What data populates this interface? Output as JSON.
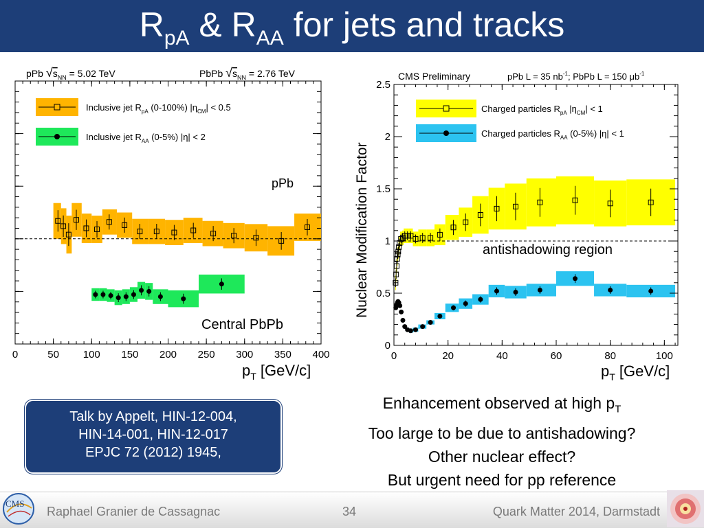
{
  "title": {
    "R": "R",
    "sub1": "pA",
    "amp": " & R",
    "sub2": "AA",
    "rest": " for jets and tracks"
  },
  "colors": {
    "title_bar": "#1d3e78",
    "jet_rpa_band": "#ffb400",
    "jet_raa_band": "#1ee85a",
    "trk_rpa_band": "#ffff00",
    "trk_raa_band": "#2cc3f0"
  },
  "chart_data": [
    {
      "type": "scatter",
      "xlabel": "p",
      "xlabel_sub": "T",
      "xlabel_unit": " [GeV/c]",
      "ylabel": "",
      "xlim": [
        0,
        400
      ],
      "ylim": [
        0,
        2.5
      ],
      "xticks": [
        0,
        50,
        100,
        150,
        200,
        250,
        300,
        350,
        400
      ],
      "reference_line": 1,
      "header_left": "pPb √s_NN = 5.02 TeV",
      "header_right": "PbPb √s_NN = 2.76 TeV",
      "annotations": [
        "pPb",
        "Central PbPb"
      ],
      "series": [
        {
          "name": "Inclusive jet R_pA (0-100%) |η_CM| < 0.5",
          "marker": "open-square",
          "points": [
            {
              "x": 56,
              "y": 1.17,
              "xlo": 50,
              "xhi": 60,
              "syst": 0.17
            },
            {
              "x": 63,
              "y": 1.12,
              "xlo": 60,
              "xhi": 67,
              "syst": 0.17
            },
            {
              "x": 70,
              "y": 1.04,
              "xlo": 67,
              "xhi": 74,
              "syst": 0.18
            },
            {
              "x": 80,
              "y": 1.18,
              "xlo": 74,
              "xhi": 87,
              "syst": 0.16
            },
            {
              "x": 93,
              "y": 1.1,
              "xlo": 87,
              "xhi": 100,
              "syst": 0.14
            },
            {
              "x": 107,
              "y": 1.09,
              "xlo": 100,
              "xhi": 114,
              "syst": 0.13
            },
            {
              "x": 123,
              "y": 1.16,
              "xlo": 114,
              "xhi": 133,
              "syst": 0.12
            },
            {
              "x": 143,
              "y": 1.13,
              "xlo": 133,
              "xhi": 153,
              "syst": 0.12
            },
            {
              "x": 163,
              "y": 1.07,
              "xlo": 153,
              "xhi": 174,
              "syst": 0.12
            },
            {
              "x": 185,
              "y": 1.07,
              "xlo": 174,
              "xhi": 196,
              "syst": 0.12
            },
            {
              "x": 208,
              "y": 1.06,
              "xlo": 196,
              "xhi": 220,
              "syst": 0.12
            },
            {
              "x": 233,
              "y": 1.08,
              "xlo": 220,
              "xhi": 245,
              "syst": 0.12
            },
            {
              "x": 259,
              "y": 1.05,
              "xlo": 245,
              "xhi": 272,
              "syst": 0.12
            },
            {
              "x": 286,
              "y": 1.03,
              "xlo": 272,
              "xhi": 300,
              "syst": 0.12
            },
            {
              "x": 315,
              "y": 1.01,
              "xlo": 300,
              "xhi": 330,
              "syst": 0.13
            },
            {
              "x": 348,
              "y": 0.98,
              "xlo": 330,
              "xhi": 365,
              "syst": 0.14
            },
            {
              "x": 382,
              "y": 1.11,
              "xlo": 365,
              "xhi": 400,
              "syst": 0.13
            }
          ]
        },
        {
          "name": "Inclusive jet R_AA (0-5%) |η| < 2",
          "marker": "filled-circle",
          "points": [
            {
              "x": 105,
              "y": 0.47,
              "xlo": 100,
              "xhi": 110,
              "syst": 0.06
            },
            {
              "x": 115,
              "y": 0.47,
              "xlo": 110,
              "xhi": 120,
              "syst": 0.06
            },
            {
              "x": 125,
              "y": 0.46,
              "xlo": 120,
              "xhi": 130,
              "syst": 0.06
            },
            {
              "x": 135,
              "y": 0.44,
              "xlo": 130,
              "xhi": 140,
              "syst": 0.07
            },
            {
              "x": 145,
              "y": 0.45,
              "xlo": 140,
              "xhi": 150,
              "syst": 0.07
            },
            {
              "x": 155,
              "y": 0.47,
              "xlo": 150,
              "xhi": 160,
              "syst": 0.07
            },
            {
              "x": 165,
              "y": 0.51,
              "xlo": 160,
              "xhi": 170,
              "syst": 0.08
            },
            {
              "x": 175,
              "y": 0.5,
              "xlo": 170,
              "xhi": 180,
              "syst": 0.08
            },
            {
              "x": 190,
              "y": 0.45,
              "xlo": 180,
              "xhi": 200,
              "syst": 0.07
            },
            {
              "x": 220,
              "y": 0.43,
              "xlo": 200,
              "xhi": 240,
              "syst": 0.08
            },
            {
              "x": 270,
              "y": 0.57,
              "xlo": 240,
              "xhi": 300,
              "syst": 0.09
            }
          ]
        }
      ]
    },
    {
      "type": "scatter",
      "xlabel": "p",
      "xlabel_sub": "T",
      "xlabel_unit": " [GeV/c]",
      "ylabel": "Nuclear Modification Factor",
      "xlim": [
        0,
        105
      ],
      "ylim": [
        0,
        2.5
      ],
      "xticks": [
        0,
        20,
        40,
        60,
        80,
        100
      ],
      "yticks": [
        0,
        0.5,
        1,
        1.5,
        2,
        2.5
      ],
      "reference_line": 1,
      "header_left": "CMS Preliminary",
      "header_right": "pPb L = 35 nb⁻¹; PbPb L = 150 μb⁻¹",
      "annotations": [
        "antishadowing region"
      ],
      "series": [
        {
          "name": "Charged particles R_pA |η_CM| < 1",
          "marker": "open-square",
          "points": [
            {
              "x": 0.6,
              "y": 0.6,
              "xlo": 0.5,
              "xhi": 0.7,
              "syst": 0.07
            },
            {
              "x": 0.8,
              "y": 0.68,
              "xlo": 0.7,
              "xhi": 0.9,
              "syst": 0.07
            },
            {
              "x": 1.0,
              "y": 0.76,
              "xlo": 0.9,
              "xhi": 1.1,
              "syst": 0.07
            },
            {
              "x": 1.2,
              "y": 0.83,
              "xlo": 1.1,
              "xhi": 1.3,
              "syst": 0.07
            },
            {
              "x": 1.4,
              "y": 0.87,
              "xlo": 1.3,
              "xhi": 1.5,
              "syst": 0.07
            },
            {
              "x": 1.6,
              "y": 0.9,
              "xlo": 1.5,
              "xhi": 1.7,
              "syst": 0.07
            },
            {
              "x": 1.8,
              "y": 0.94,
              "xlo": 1.7,
              "xhi": 1.9,
              "syst": 0.07
            },
            {
              "x": 2.1,
              "y": 0.98,
              "xlo": 1.9,
              "xhi": 2.3,
              "syst": 0.07
            },
            {
              "x": 2.6,
              "y": 1.02,
              "xlo": 2.3,
              "xhi": 3.0,
              "syst": 0.07
            },
            {
              "x": 3.3,
              "y": 1.03,
              "xlo": 3.0,
              "xhi": 3.6,
              "syst": 0.07
            },
            {
              "x": 4.0,
              "y": 1.05,
              "xlo": 3.6,
              "xhi": 4.5,
              "syst": 0.07
            },
            {
              "x": 5.0,
              "y": 1.05,
              "xlo": 4.5,
              "xhi": 5.5,
              "syst": 0.07
            },
            {
              "x": 6.2,
              "y": 1.05,
              "xlo": 5.5,
              "xhi": 7.0,
              "syst": 0.07
            },
            {
              "x": 8.0,
              "y": 1.02,
              "xlo": 7.0,
              "xhi": 9.0,
              "syst": 0.07
            },
            {
              "x": 10.6,
              "y": 1.03,
              "xlo": 9.0,
              "xhi": 12.0,
              "syst": 0.08
            },
            {
              "x": 13.5,
              "y": 1.03,
              "xlo": 12.0,
              "xhi": 15.0,
              "syst": 0.08
            },
            {
              "x": 17.0,
              "y": 1.06,
              "xlo": 15.0,
              "xhi": 19.0,
              "syst": 0.1
            },
            {
              "x": 22.0,
              "y": 1.13,
              "xlo": 19.0,
              "xhi": 24.0,
              "syst": 0.12
            },
            {
              "x": 26.5,
              "y": 1.18,
              "xlo": 24.0,
              "xhi": 29.0,
              "syst": 0.14
            },
            {
              "x": 32.0,
              "y": 1.25,
              "xlo": 29.0,
              "xhi": 35.0,
              "syst": 0.18
            },
            {
              "x": 38.0,
              "y": 1.31,
              "xlo": 35.0,
              "xhi": 41.0,
              "syst": 0.2
            },
            {
              "x": 45.0,
              "y": 1.33,
              "xlo": 41.0,
              "xhi": 49.0,
              "syst": 0.22
            },
            {
              "x": 54.0,
              "y": 1.37,
              "xlo": 49.0,
              "xhi": 60.0,
              "syst": 0.23
            },
            {
              "x": 67.0,
              "y": 1.39,
              "xlo": 60.0,
              "xhi": 74.0,
              "syst": 0.23
            },
            {
              "x": 80.0,
              "y": 1.36,
              "xlo": 74.0,
              "xhi": 86.0,
              "syst": 0.22
            },
            {
              "x": 95.0,
              "y": 1.37,
              "xlo": 86.0,
              "xhi": 104.0,
              "syst": 0.22
            }
          ]
        },
        {
          "name": "Charged particles R_AA (0-5%) |η| < 1",
          "marker": "filled-circle",
          "points": [
            {
              "x": 0.7,
              "y": 0.36,
              "xlo": 0.6,
              "xhi": 0.8,
              "syst": 0.02
            },
            {
              "x": 0.9,
              "y": 0.38,
              "xlo": 0.8,
              "xhi": 1.0,
              "syst": 0.02
            },
            {
              "x": 1.1,
              "y": 0.39,
              "xlo": 1.0,
              "xhi": 1.2,
              "syst": 0.02
            },
            {
              "x": 1.3,
              "y": 0.41,
              "xlo": 1.2,
              "xhi": 1.4,
              "syst": 0.02
            },
            {
              "x": 1.5,
              "y": 0.42,
              "xlo": 1.4,
              "xhi": 1.6,
              "syst": 0.02
            },
            {
              "x": 1.8,
              "y": 0.41,
              "xlo": 1.6,
              "xhi": 2.0,
              "syst": 0.02
            },
            {
              "x": 2.2,
              "y": 0.38,
              "xlo": 2.0,
              "xhi": 2.4,
              "syst": 0.02
            },
            {
              "x": 2.7,
              "y": 0.32,
              "xlo": 2.4,
              "xhi": 3.0,
              "syst": 0.02
            },
            {
              "x": 3.3,
              "y": 0.24,
              "xlo": 3.0,
              "xhi": 3.6,
              "syst": 0.02
            },
            {
              "x": 4.0,
              "y": 0.18,
              "xlo": 3.6,
              "xhi": 4.4,
              "syst": 0.02
            },
            {
              "x": 5.0,
              "y": 0.15,
              "xlo": 4.4,
              "xhi": 5.6,
              "syst": 0.02
            },
            {
              "x": 6.2,
              "y": 0.14,
              "xlo": 5.6,
              "xhi": 7.0,
              "syst": 0.02
            },
            {
              "x": 8.0,
              "y": 0.15,
              "xlo": 7.0,
              "xhi": 9.0,
              "syst": 0.02
            },
            {
              "x": 10.6,
              "y": 0.18,
              "xlo": 9.0,
              "xhi": 12.0,
              "syst": 0.02
            },
            {
              "x": 13.5,
              "y": 0.22,
              "xlo": 12.0,
              "xhi": 15.0,
              "syst": 0.02
            },
            {
              "x": 17.0,
              "y": 0.28,
              "xlo": 15.0,
              "xhi": 19.0,
              "syst": 0.03
            },
            {
              "x": 22.0,
              "y": 0.36,
              "xlo": 19.0,
              "xhi": 24.0,
              "syst": 0.04
            },
            {
              "x": 26.5,
              "y": 0.4,
              "xlo": 24.0,
              "xhi": 29.0,
              "syst": 0.05
            },
            {
              "x": 32.0,
              "y": 0.44,
              "xlo": 29.0,
              "xhi": 35.0,
              "syst": 0.05
            },
            {
              "x": 38.0,
              "y": 0.52,
              "xlo": 35.0,
              "xhi": 41.0,
              "syst": 0.06
            },
            {
              "x": 45.0,
              "y": 0.51,
              "xlo": 41.0,
              "xhi": 49.0,
              "syst": 0.06
            },
            {
              "x": 54.0,
              "y": 0.53,
              "xlo": 49.0,
              "xhi": 60.0,
              "syst": 0.06
            },
            {
              "x": 67.0,
              "y": 0.64,
              "xlo": 60.0,
              "xhi": 74.0,
              "syst": 0.07
            },
            {
              "x": 80.0,
              "y": 0.53,
              "xlo": 74.0,
              "xhi": 86.0,
              "syst": 0.06
            },
            {
              "x": 95.0,
              "y": 0.52,
              "xlo": 86.0,
              "xhi": 104.0,
              "syst": 0.06
            }
          ]
        }
      ]
    }
  ],
  "talk_box": [
    "Talk by Appelt, HIN-12-004,",
    "HIN-14-001, HIN-12-017",
    "EPJC 72 (2012) 1945,"
  ],
  "notes": {
    "line1_a": "Enhancement observed at high p",
    "line1_sub": "T",
    "line2": "Too large to be due to antishadowing?",
    "line3": "Other nuclear effect?",
    "line4": "But urgent need for pp reference"
  },
  "footer": {
    "author": "Raphael Granier de Cassagnac",
    "page": "34",
    "conference": "Quark Matter 2014, Darmstadt",
    "logo_text": "CMS"
  }
}
